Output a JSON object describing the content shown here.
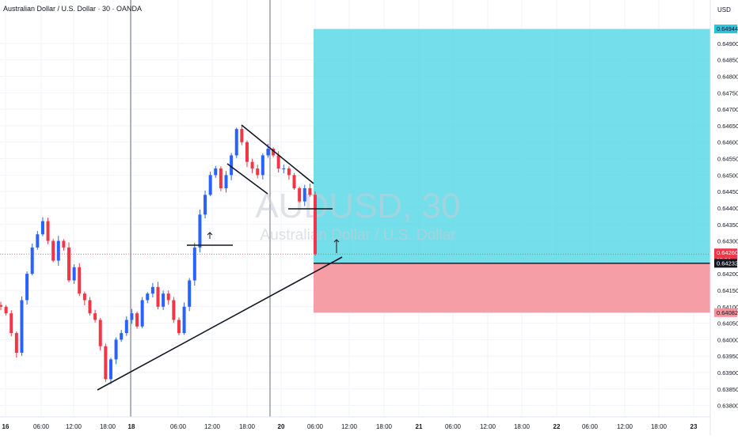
{
  "header": {
    "title": "Australian Dollar / U.S. Dollar · 30 · OANDA",
    "currency": "USD"
  },
  "watermark": {
    "symbol": "AUDUSD, 30",
    "name": "Australian Dollar / U.S. Dollar"
  },
  "colors": {
    "up_candle": "#2962ff",
    "down_candle": "#f23645",
    "profit_zone": "#5cd8e6",
    "loss_zone": "#f5939b",
    "last_price_tag": "#f23645",
    "entry_tag": "#131722",
    "profit_tag": "#26c6da"
  },
  "chart_data": {
    "type": "candlestick",
    "title": "Australian Dollar / U.S. Dollar · 30 · OANDA",
    "y_axis": {
      "range": [
        0.63775,
        0.6502
      ],
      "ticks": [
        "0.64900",
        "0.64850",
        "0.64800",
        "0.64750",
        "0.64700",
        "0.64650",
        "0.64600",
        "0.64550",
        "0.64500",
        "0.64450",
        "0.64400",
        "0.64350",
        "0.64300",
        "0.64200",
        "0.64150",
        "0.64100",
        "0.64050",
        "0.64000",
        "0.63950",
        "0.63900",
        "0.63850",
        "0.63800"
      ]
    },
    "x_axis": {
      "ticks": [
        "16",
        "06:00",
        "12:00",
        "18:00",
        "18",
        "06:00",
        "12:00",
        "18:00",
        "20",
        "06:00",
        "12:00",
        "18:00",
        "21",
        "06:00",
        "12:00",
        "18:00",
        "22",
        "06:00",
        "12:00",
        "18:00",
        "23"
      ],
      "bold_ticks": [
        "16",
        "18",
        "20",
        "21",
        "22",
        "23"
      ]
    },
    "price_tags": [
      {
        "label": "0.64944",
        "value": 0.64944,
        "kind": "profit"
      },
      {
        "label": "0.64260",
        "sub": "18:04",
        "value": 0.6426,
        "kind": "last"
      },
      {
        "label": "0.64232",
        "value": 0.64232,
        "kind": "entry"
      },
      {
        "label": "0.64082",
        "value": 0.64082,
        "kind": "stop"
      }
    ],
    "position": {
      "type": "long",
      "entry": 0.64232,
      "target": 0.64944,
      "stop": 0.64082
    },
    "last_price": 0.6426,
    "candle_path": [
      0.641,
      0.6408,
      0.6402,
      0.6396,
      0.6412,
      0.642,
      0.6428,
      0.6432,
      0.6436,
      0.643,
      0.6424,
      0.643,
      0.6428,
      0.6418,
      0.6422,
      0.6414,
      0.6412,
      0.6408,
      0.6406,
      0.6398,
      0.6388,
      0.6394,
      0.64,
      0.6402,
      0.6406,
      0.6408,
      0.6404,
      0.6412,
      0.6414,
      0.6416,
      0.641,
      0.6414,
      0.6412,
      0.6406,
      0.6402,
      0.641,
      0.6418,
      0.6428,
      0.6438,
      0.6444,
      0.645,
      0.6452,
      0.6446,
      0.645,
      0.6456,
      0.6464,
      0.646,
      0.6454,
      0.6452,
      0.645,
      0.6456,
      0.6458,
      0.6456,
      0.6452,
      0.6452,
      0.645,
      0.6446,
      0.6442,
      0.6446,
      0.6444,
      0.6426
    ]
  }
}
